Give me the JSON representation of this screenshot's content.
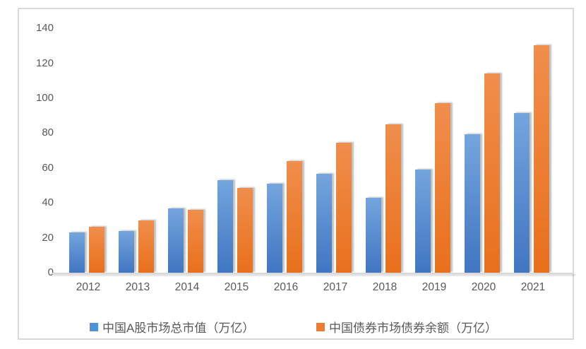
{
  "chart_data": {
    "type": "bar",
    "title": "",
    "xlabel": "",
    "ylabel": "",
    "categories": [
      "2012",
      "2013",
      "2014",
      "2015",
      "2016",
      "2017",
      "2018",
      "2019",
      "2020",
      "2021"
    ],
    "series": [
      {
        "name": "中国A股市场总市值（万亿）",
        "values": [
          23,
          24,
          37,
          53,
          51,
          56.5,
          43,
          59,
          79.5,
          91.5
        ],
        "color_top": "#74a5dd",
        "color_bottom": "#4076c2",
        "legend_color": "#4d93d9"
      },
      {
        "name": "中国债券市场债券余额（万亿）",
        "values": [
          26.5,
          30,
          36,
          48.5,
          64,
          74.5,
          85,
          97,
          114,
          130.5
        ],
        "color_top": "#f08e4c",
        "color_bottom": "#e8701c",
        "legend_color": "#ed7d31"
      }
    ],
    "ylim": [
      0,
      140
    ],
    "yticks": [
      0,
      20,
      40,
      60,
      80,
      100,
      120,
      140
    ],
    "grid": false,
    "legend_position": "bottom"
  },
  "colors": {
    "axis_text": "#595959",
    "axis_line": "#d9d9d9",
    "frame_border": "#d9d9d9",
    "background": "#ffffff"
  }
}
